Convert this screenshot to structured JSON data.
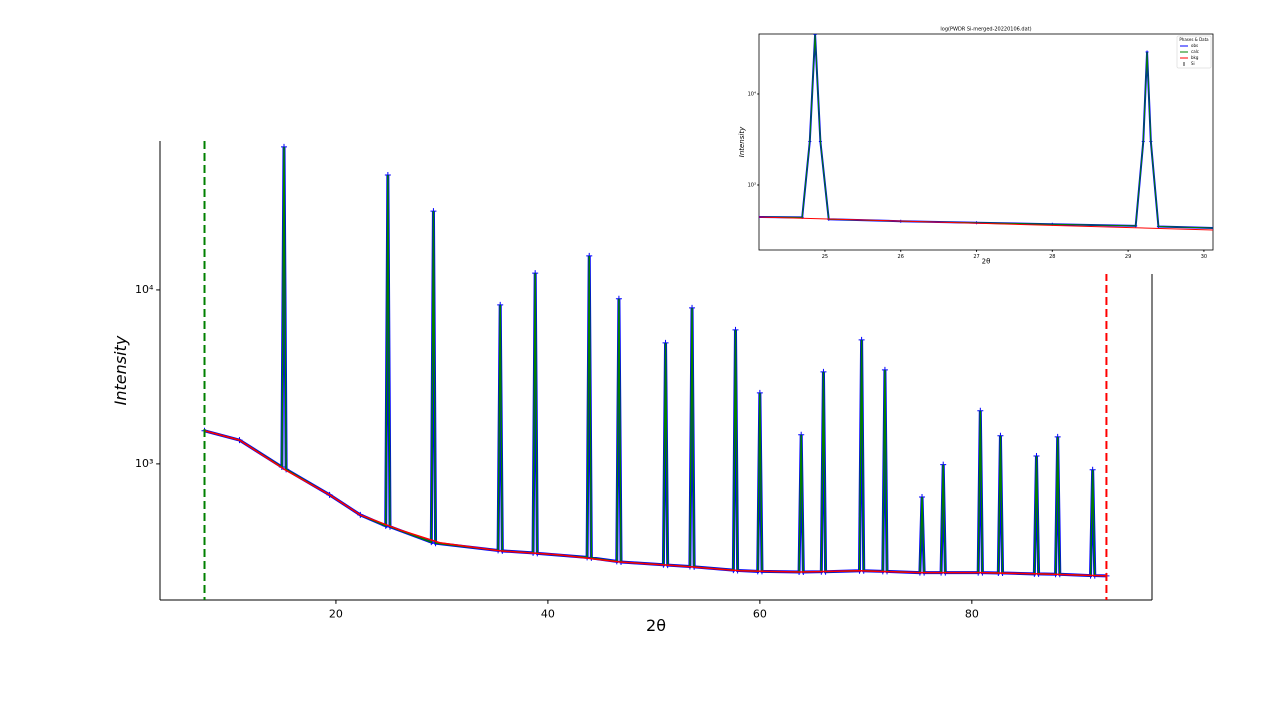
{
  "chart_data": [
    {
      "type": "line",
      "xlabel": "2θ",
      "ylabel": "Intensity",
      "xlim": [
        3.4,
        97
      ],
      "ylim": [
        165,
        71800
      ],
      "log_y": true,
      "xticks": [
        20,
        40,
        60,
        80
      ],
      "yticks": [
        {
          "value": 1000,
          "label": "10³"
        },
        {
          "value": 10000,
          "label": "10⁴"
        }
      ],
      "limits": [
        {
          "value": 7.6,
          "color": "#008000"
        },
        {
          "value": 92.7,
          "color": "#ff0000"
        }
      ],
      "series": [
        {
          "color": "#0000ff",
          "marker": "+",
          "x": [
            7.6,
            10.9,
            14.9,
            15.1,
            15.3,
            19.4,
            22.3,
            24.7,
            24.9,
            25.1,
            29.0,
            29.2,
            29.4,
            35.3,
            35.5,
            35.7,
            38.6,
            38.8,
            39.0,
            43.7,
            43.9,
            44.1,
            46.5,
            46.7,
            46.9,
            50.9,
            51.1,
            51.3,
            53.4,
            53.6,
            53.8,
            57.5,
            57.7,
            57.9,
            59.8,
            60.0,
            60.2,
            63.7,
            63.9,
            64.1,
            65.8,
            66.0,
            66.2,
            69.4,
            69.6,
            69.8,
            71.6,
            71.8,
            72.0,
            75.1,
            75.3,
            75.5,
            77.1,
            77.3,
            77.5,
            80.6,
            80.8,
            81.0,
            82.5,
            82.7,
            82.9,
            85.9,
            86.1,
            86.3,
            87.9,
            88.1,
            88.3,
            91.2,
            91.4,
            91.6,
            92.7
          ],
          "values": [
            1550,
            1370,
            960,
            66400,
            930,
            664,
            509,
            440,
            45800,
            435,
            355,
            28400,
            350,
            318,
            8200,
            316,
            308,
            12500,
            306,
            290,
            15700,
            288,
            275,
            8900,
            273,
            263,
            4960,
            262,
            257,
            7880,
            256,
            245,
            5890,
            244,
            241,
            2560,
            241,
            239,
            1470,
            239,
            240,
            3380,
            240,
            243,
            5160,
            243,
            241,
            3470,
            241,
            237,
            645,
            237,
            237,
            990,
            237,
            237,
            2020,
            237,
            236,
            1450,
            236,
            233,
            1110,
            233,
            232,
            1430,
            232,
            228,
            925,
            228,
            227
          ]
        },
        {
          "color": "#008000",
          "x": [
            7.6,
            10.9,
            14.9,
            15.1,
            15.3,
            19.4,
            22.3,
            24.7,
            24.9,
            25.1,
            29.0,
            29.2,
            29.4,
            35.3,
            35.5,
            35.7,
            38.6,
            38.8,
            39.0,
            43.7,
            43.9,
            44.1,
            46.5,
            46.7,
            46.9,
            50.9,
            51.1,
            51.3,
            53.4,
            53.6,
            53.8,
            57.5,
            57.7,
            57.9,
            59.8,
            60.0,
            60.2,
            63.7,
            63.9,
            64.1,
            65.8,
            66.0,
            66.2,
            69.4,
            69.6,
            69.8,
            71.6,
            71.8,
            72.0,
            75.1,
            75.3,
            75.5,
            77.1,
            77.3,
            77.5,
            80.6,
            80.8,
            81.0,
            82.5,
            82.7,
            82.9,
            85.9,
            86.1,
            86.3,
            87.9,
            88.1,
            88.3,
            91.2,
            91.4,
            91.6,
            92.7
          ],
          "values": [
            1550,
            1370,
            960,
            66400,
            930,
            664,
            509,
            440,
            45800,
            435,
            355,
            28400,
            350,
            318,
            8200,
            316,
            308,
            12500,
            306,
            290,
            15700,
            288,
            275,
            8900,
            273,
            263,
            4960,
            262,
            257,
            7880,
            256,
            245,
            5890,
            244,
            241,
            2560,
            241,
            239,
            1470,
            239,
            240,
            3380,
            240,
            243,
            5160,
            243,
            241,
            3470,
            241,
            237,
            645,
            237,
            237,
            990,
            237,
            237,
            2020,
            237,
            236,
            1450,
            236,
            233,
            1110,
            233,
            232,
            1430,
            232,
            228,
            925,
            228,
            227
          ]
        },
        {
          "color": "#ff0000",
          "x": [
            7.6,
            10.9,
            15.2,
            19.4,
            22.3,
            26.0,
            29.8,
            35.5,
            41.1,
            46.8,
            52.5,
            58.1,
            63.8,
            69.4,
            75.1,
            80.8,
            86.4,
            92.7
          ],
          "values": [
            1550,
            1370,
            925,
            664,
            509,
            418,
            352,
            316,
            300,
            273,
            259,
            243,
            239,
            243,
            237,
            237,
            233,
            227
          ]
        }
      ]
    },
    {
      "type": "line",
      "title": "log(PWDR Si-merged-20220106.dat)",
      "xlabel": "2θ",
      "ylabel": "Intensity",
      "xlim": [
        24.13,
        30.12
      ],
      "ylim": [
        193,
        45600
      ],
      "log_y": true,
      "xticks": [
        25,
        26,
        27,
        28,
        29,
        30
      ],
      "yticks": [
        {
          "value": 1000,
          "label": "10³"
        },
        {
          "value": 10000,
          "label": "10⁴"
        }
      ],
      "legend_title": "Phases & Data",
      "phase": {
        "name": "Si",
        "color": "#000000"
      },
      "series": [
        {
          "name": "obs",
          "color": "#0000ff",
          "marker": "+",
          "x": [
            24.13,
            24.7,
            24.8,
            24.87,
            24.94,
            25.05,
            26,
            27,
            28,
            29.1,
            29.2,
            29.25,
            29.3,
            29.4,
            30.12
          ],
          "values": [
            445,
            440,
            3000,
            45000,
            3000,
            420,
            400,
            385,
            370,
            355,
            3000,
            28900,
            3000,
            350,
            337
          ]
        },
        {
          "name": "calc",
          "color": "#008000",
          "x": [
            24.13,
            24.7,
            24.8,
            24.87,
            24.94,
            25.05,
            26,
            27,
            28,
            29.1,
            29.2,
            29.25,
            29.3,
            29.4,
            30.12
          ],
          "values": [
            445,
            440,
            3000,
            45000,
            3000,
            420,
            400,
            385,
            370,
            355,
            3000,
            28900,
            3000,
            350,
            337
          ]
        },
        {
          "name": "bkg",
          "color": "#ff0000",
          "x": [
            24.13,
            30.12
          ],
          "values": [
            445,
            320
          ]
        }
      ]
    }
  ]
}
